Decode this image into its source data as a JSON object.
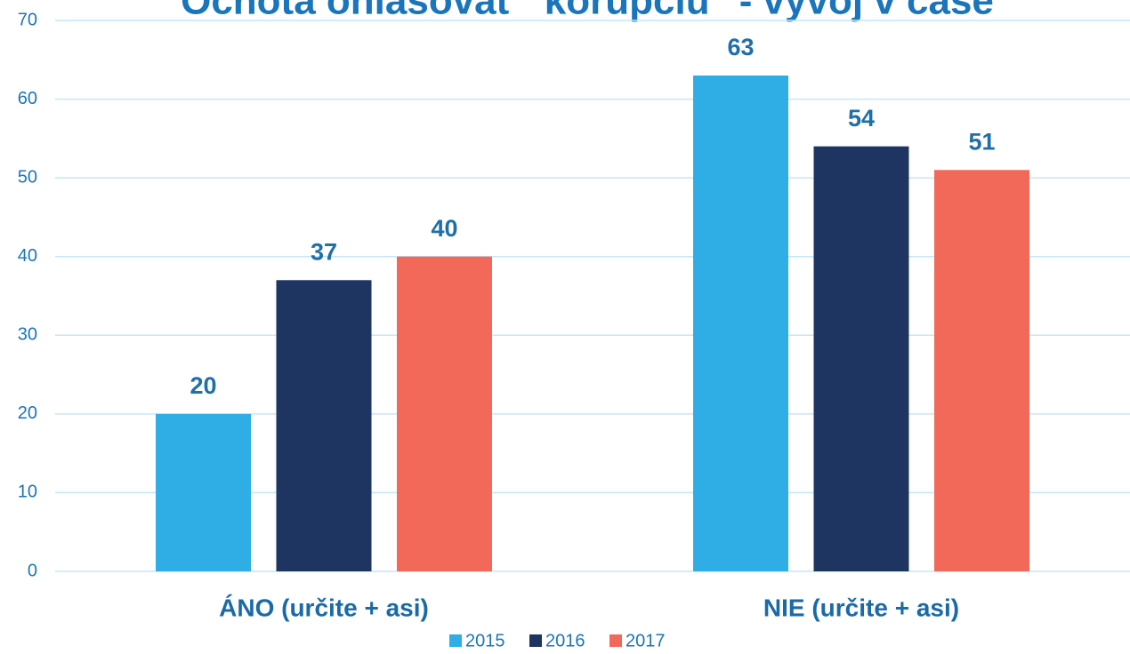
{
  "chart_data": {
    "type": "bar",
    "title": "Ochota ohlasovať \"korupciu\" - vývoj v čase",
    "categories": [
      "ÁNO (určite + asi)",
      "NIE (určite + asi)"
    ],
    "series": [
      {
        "name": "2015",
        "color": "#2eaee4",
        "values": [
          20,
          63
        ]
      },
      {
        "name": "2016",
        "color": "#1e3461",
        "values": [
          37,
          54
        ]
      },
      {
        "name": "2017",
        "color": "#f2695a",
        "values": [
          40,
          51
        ]
      }
    ],
    "ylim": [
      0,
      70
    ],
    "yticks": [
      0,
      10,
      20,
      30,
      40,
      50,
      60,
      70
    ],
    "grid": true,
    "legend": "bottom"
  }
}
